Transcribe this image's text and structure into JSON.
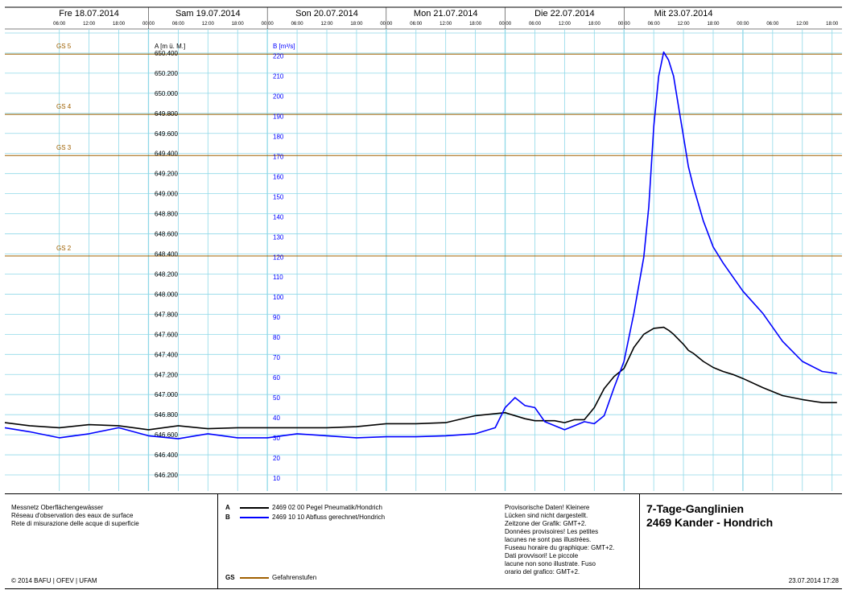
{
  "chart_data": {
    "type": "line",
    "days": [
      "Fre 18.07.2014",
      "Sam 19.07.2014",
      "Son 20.07.2014",
      "Mon 21.07.2014",
      "Die 22.07.2014",
      "Mit 23.07.2014"
    ],
    "hour_ticks": [
      "06:00",
      "12:00",
      "18:00",
      "00:00",
      "06:00",
      "12:00",
      "18:00",
      "00:00",
      "06:00",
      "12:00",
      "18:00",
      "00:00",
      "06:00",
      "12:00",
      "18:00",
      "00:00",
      "06:00",
      "12:00",
      "18:00",
      "00:00",
      "06:00",
      "12:00",
      "18:00",
      "00:00",
      "06:00",
      "12:00",
      "18:00"
    ],
    "x_unit": "hours since Fre 18.07.2014 00:00",
    "xlim": [
      -5,
      164
    ],
    "axis_a": {
      "label": "A [m ü. M.]",
      "ylim": [
        646.04,
        650.64
      ],
      "ticks": [
        "646.200",
        "646.400",
        "646.600",
        "646.800",
        "647.000",
        "647.200",
        "647.400",
        "647.600",
        "647.800",
        "648.000",
        "648.200",
        "648.400",
        "648.600",
        "648.800",
        "649.000",
        "649.200",
        "649.400",
        "649.600",
        "649.800",
        "650.000",
        "650.200",
        "650.400"
      ],
      "tick_values": [
        646.2,
        646.4,
        646.6,
        646.8,
        647.0,
        647.2,
        647.4,
        647.6,
        647.8,
        648.0,
        648.2,
        648.4,
        648.6,
        648.8,
        649.0,
        649.2,
        649.4,
        649.6,
        649.8,
        650.0,
        650.2,
        650.4
      ]
    },
    "axis_b": {
      "label": "B [m³/s]",
      "ylim": [
        3.5,
        233.5
      ],
      "ticks": [
        "10",
        "20",
        "30",
        "40",
        "50",
        "60",
        "70",
        "80",
        "90",
        "100",
        "110",
        "120",
        "130",
        "140",
        "150",
        "160",
        "170",
        "180",
        "190",
        "200",
        "210",
        "220"
      ],
      "tick_values": [
        10,
        20,
        30,
        40,
        50,
        60,
        70,
        80,
        90,
        100,
        110,
        120,
        130,
        140,
        150,
        160,
        170,
        180,
        190,
        200,
        210,
        220
      ]
    },
    "danger_levels": [
      {
        "name": "GS 5",
        "value": 650.39
      },
      {
        "name": "GS 4",
        "value": 649.79
      },
      {
        "name": "GS 3",
        "value": 649.38
      },
      {
        "name": "GS 2",
        "value": 648.38
      }
    ],
    "series": [
      {
        "name": "2469 02 00 Pegel Pneumatik/Hondrich",
        "key": "A",
        "axis": "A",
        "color": "#000000",
        "x": [
          -5,
          0,
          6,
          12,
          18,
          24,
          30,
          36,
          42,
          48,
          54,
          60,
          66,
          72,
          78,
          84,
          90,
          96,
          100,
          102,
          104,
          106,
          108,
          110,
          112,
          114,
          116,
          118,
          120,
          122,
          124,
          126,
          128,
          129,
          130,
          131,
          132,
          133,
          134,
          136,
          138,
          140,
          142,
          144,
          148,
          152,
          156,
          160,
          163
        ],
        "y": [
          646.72,
          646.69,
          646.67,
          646.7,
          646.69,
          646.65,
          646.69,
          646.66,
          646.67,
          646.67,
          646.67,
          646.67,
          646.68,
          646.71,
          646.71,
          646.72,
          646.79,
          646.82,
          646.76,
          646.74,
          646.74,
          646.74,
          646.72,
          646.75,
          646.75,
          646.87,
          647.06,
          647.18,
          647.26,
          647.47,
          647.6,
          647.66,
          647.67,
          647.64,
          647.6,
          647.55,
          647.5,
          647.44,
          647.41,
          647.33,
          647.27,
          647.23,
          647.2,
          647.16,
          647.07,
          646.99,
          646.95,
          646.92,
          646.92
        ]
      },
      {
        "name": "2469 10 10 Abfluss gerechnet/Hondrich",
        "key": "B",
        "axis": "B",
        "color": "#0000ff",
        "x": [
          -5,
          0,
          6,
          12,
          18,
          24,
          30,
          36,
          42,
          48,
          54,
          60,
          66,
          72,
          78,
          84,
          90,
          94,
          96,
          98,
          100,
          102,
          104,
          106,
          108,
          110,
          112,
          114,
          116,
          118,
          120,
          122,
          124,
          125,
          126,
          127,
          128,
          129,
          130,
          131,
          132,
          133,
          134,
          136,
          138,
          140,
          142,
          144,
          148,
          152,
          156,
          160,
          163
        ],
        "y": [
          35.0,
          33.0,
          30.0,
          32.0,
          35.0,
          31.0,
          29.5,
          32.0,
          30.0,
          30.0,
          32.0,
          31.0,
          30.0,
          30.5,
          30.5,
          31.0,
          32.0,
          35.0,
          45.0,
          50.0,
          46.0,
          45.0,
          38.0,
          36.0,
          34.0,
          36.0,
          38.0,
          37.0,
          41.0,
          55.0,
          68.0,
          92.0,
          120.0,
          145.0,
          185.0,
          210.0,
          222.0,
          218.0,
          210.0,
          195.0,
          180.0,
          165.0,
          155.0,
          138.0,
          125.0,
          117.0,
          110.0,
          103.0,
          92.0,
          78.0,
          68.0,
          63.0,
          62.0
        ]
      }
    ]
  },
  "legend": {
    "gs_key": "GS",
    "gs_label": "Gefahrenstufen",
    "gs_color": "#a06000"
  },
  "footer": {
    "network_lines": [
      "Messnetz Oberflächengewässer",
      "Réseau d'observation des eaux de surface",
      "Rete di misurazione delle acque di superficie"
    ],
    "copyright": "© 2014 BAFU | OFEV | UFAM",
    "provisional_lines": [
      "Provisorische Daten! Kleinere",
      "Lücken sind nicht dargestellt.",
      "Zeitzone der Grafik: GMT+2.",
      "Données provisoires! Les petites",
      "lacunes ne sont pas illustrées.",
      "Fuseau horaire du graphique: GMT+2.",
      "Dati provvisori! Le piccole",
      "lacune non sono illustrate. Fuso",
      "orario del grafico: GMT+2."
    ],
    "title_line1": "7-Tage-Ganglinien",
    "title_line2": "2469 Kander - Hondrich",
    "timestamp": "23.07.2014 17:28"
  },
  "colors": {
    "grid": "#8fd8e8",
    "series_a": "#000000",
    "series_b": "#0000ff",
    "danger_level": "#a06000",
    "axis_b_text": "#0000ff"
  }
}
